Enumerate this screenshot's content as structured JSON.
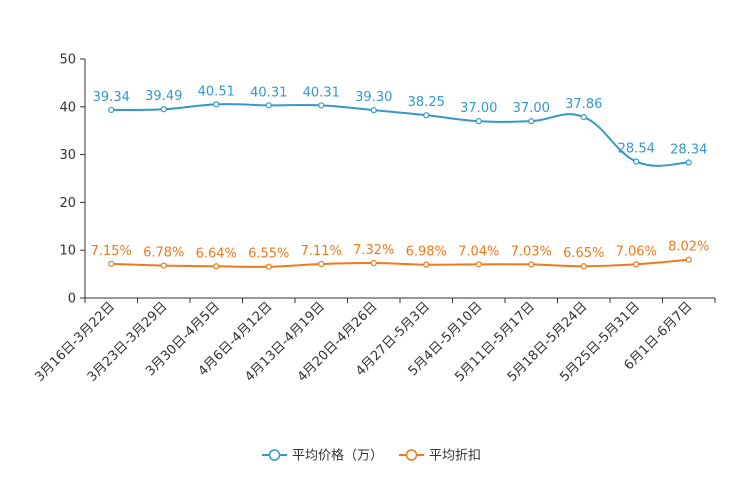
{
  "chart_data": {
    "type": "line",
    "title": "",
    "xlabel": "",
    "ylabel": "",
    "ylim": [
      0,
      50
    ],
    "yticks": [
      0,
      10,
      20,
      30,
      40,
      50
    ],
    "grid": false,
    "legend_position": "bottom-center",
    "categories": [
      "3月16日-3月22日",
      "3月23日-3月29日",
      "3月30日-4月5日",
      "4月6日-4月12日",
      "4月13日-4月19日",
      "4月20日-4月26日",
      "4月27日-5月3日",
      "5月4日-5月10日",
      "5月11日-5月17日",
      "5月18日-5月24日",
      "5月25日-5月31日",
      "6月1日-6月7日"
    ],
    "series": [
      {
        "name": "平均价格（万）",
        "color": "#3399cc",
        "values": [
          39.34,
          39.49,
          40.51,
          40.31,
          40.31,
          39.3,
          38.25,
          37.0,
          37.0,
          37.86,
          28.54,
          28.34
        ],
        "labels": [
          "39.34",
          "39.49",
          "40.51",
          "40.31",
          "40.31",
          "39.30",
          "38.25",
          "37.00",
          "37.00",
          "37.86",
          "28.54",
          "28.34"
        ]
      },
      {
        "name": "平均折扣",
        "color": "#f07a1a",
        "values": [
          7.15,
          6.78,
          6.64,
          6.55,
          7.11,
          7.32,
          6.98,
          7.04,
          7.03,
          6.65,
          7.06,
          8.02
        ],
        "labels": [
          "7.15%",
          "6.78%",
          "6.64%",
          "6.55%",
          "7.11%",
          "7.32%",
          "6.98%",
          "7.04%",
          "7.03%",
          "6.65%",
          "7.06%",
          "8.02%"
        ]
      }
    ]
  }
}
